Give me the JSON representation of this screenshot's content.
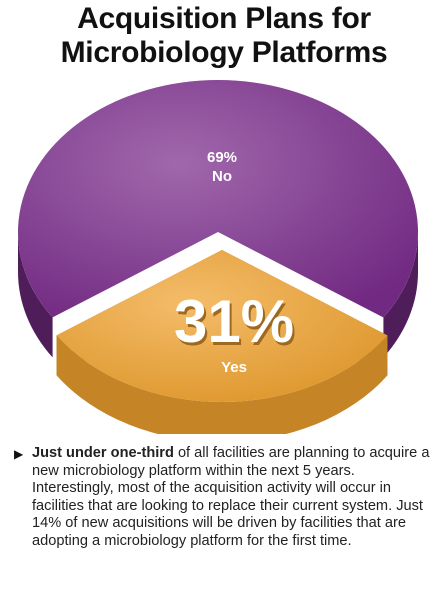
{
  "chart_data": {
    "type": "pie",
    "title_lines": [
      "Acquisition Plans for",
      "Microbiology Platforms"
    ],
    "slices": [
      {
        "label": "No",
        "value": 69,
        "display": "69%",
        "color": "#7b2d8c"
      },
      {
        "label": "Yes",
        "value": 31,
        "display": "31%",
        "color": "#f0a22e"
      }
    ]
  },
  "description": {
    "bullet": "▶",
    "lead": "Just under one-third",
    "body": " of all facilities are planning to acquire a new microbiology platform within the next 5 years. Interestingly, most of the acquisition activity will occur in facilities that are looking to replace their current system. Just 14% of new acquisitions will be driven by facilities that are adopting a microbiology platform for the first time."
  }
}
